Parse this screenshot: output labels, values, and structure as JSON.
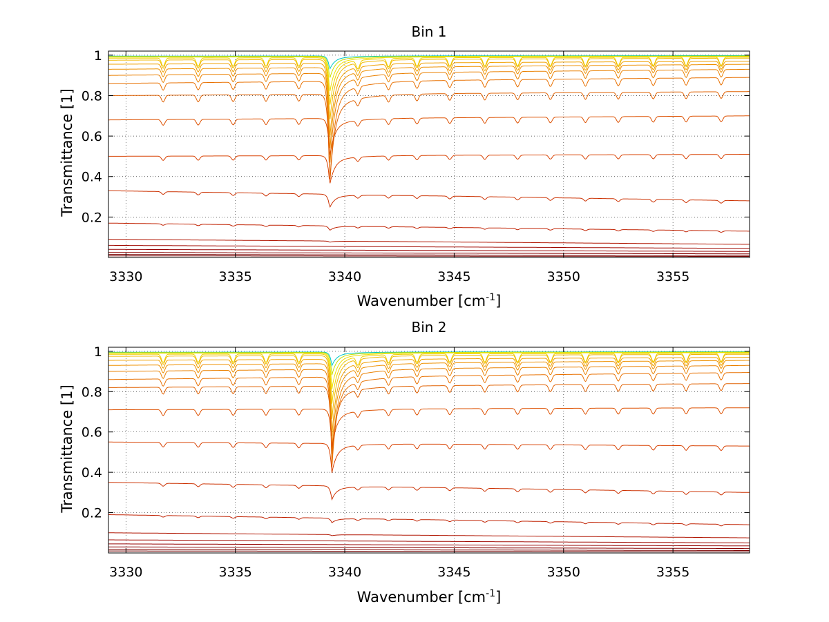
{
  "figure": {
    "background": "#ffffff"
  },
  "chart_data": [
    {
      "type": "line",
      "title": "Bin 1",
      "xlabel_main": "Wavenumber [cm",
      "xlabel_sup": "-1",
      "xlabel_end": "]",
      "ylabel": "Transmittance [1]",
      "xlim": [
        3329.2,
        3358.5
      ],
      "ylim": [
        0.0,
        1.02
      ],
      "xticks": [
        3330,
        3335,
        3340,
        3345,
        3350,
        3355
      ],
      "xtick_labels": [
        "3330",
        "3335",
        "3340",
        "3345",
        "3350",
        "3355"
      ],
      "yticks": [
        0.2,
        0.4,
        0.6,
        0.8,
        1.0
      ],
      "ytick_labels": [
        "0.2",
        "0.4",
        "0.6",
        "0.8",
        "1"
      ],
      "grid": true,
      "feature_center": 3339.3,
      "series": [
        {
          "baseline_start": 0.995,
          "baseline_end": 0.998,
          "dip_depth": 0.06,
          "color": "#00c8c8"
        },
        {
          "baseline_start": 0.993,
          "baseline_end": 0.996,
          "dip_depth": 0.1,
          "color": "#c8e000"
        },
        {
          "baseline_start": 0.99,
          "baseline_end": 0.993,
          "dip_depth": 0.16,
          "color": "#f0e000"
        },
        {
          "baseline_start": 0.985,
          "baseline_end": 0.99,
          "dip_depth": 0.22,
          "color": "#f0d000"
        },
        {
          "baseline_start": 0.975,
          "baseline_end": 0.985,
          "dip_depth": 0.28,
          "color": "#f0b800"
        },
        {
          "baseline_start": 0.955,
          "baseline_end": 0.97,
          "dip_depth": 0.34,
          "color": "#f0a000"
        },
        {
          "baseline_start": 0.93,
          "baseline_end": 0.955,
          "dip_depth": 0.38,
          "color": "#ee9000"
        },
        {
          "baseline_start": 0.9,
          "baseline_end": 0.93,
          "dip_depth": 0.42,
          "color": "#ea8000"
        },
        {
          "baseline_start": 0.86,
          "baseline_end": 0.89,
          "dip_depth": 0.46,
          "color": "#e87000"
        },
        {
          "baseline_start": 0.8,
          "baseline_end": 0.82,
          "dip_depth": 0.4,
          "color": "#e06000"
        },
        {
          "baseline_start": 0.68,
          "baseline_end": 0.7,
          "dip_depth": 0.17,
          "color": "#dd5000"
        },
        {
          "baseline_start": 0.5,
          "baseline_end": 0.51,
          "dip_depth": 0.13,
          "color": "#d84000"
        },
        {
          "baseline_start": 0.33,
          "baseline_end": 0.28,
          "dip_depth": 0.06,
          "color": "#cc3000"
        },
        {
          "baseline_start": 0.17,
          "baseline_end": 0.13,
          "dip_depth": 0.02,
          "color": "#c02000"
        },
        {
          "baseline_start": 0.09,
          "baseline_end": 0.065,
          "dip_depth": 0.005,
          "color": "#b01400"
        },
        {
          "baseline_start": 0.06,
          "baseline_end": 0.045,
          "dip_depth": 0.0,
          "color": "#a00800"
        },
        {
          "baseline_start": 0.04,
          "baseline_end": 0.03,
          "dip_depth": 0.0,
          "color": "#950000"
        },
        {
          "baseline_start": 0.025,
          "baseline_end": 0.018,
          "dip_depth": 0.0,
          "color": "#880000"
        },
        {
          "baseline_start": 0.015,
          "baseline_end": 0.01,
          "dip_depth": 0.0,
          "color": "#7c0000"
        },
        {
          "baseline_start": 0.008,
          "baseline_end": 0.005,
          "dip_depth": 0.0,
          "color": "#700000"
        }
      ]
    },
    {
      "type": "line",
      "title": "Bin 2",
      "xlabel_main": "Wavenumber [cm",
      "xlabel_sup": "-1",
      "xlabel_end": "]",
      "ylabel": "Transmittance [1]",
      "xlim": [
        3329.2,
        3358.5
      ],
      "ylim": [
        0.0,
        1.02
      ],
      "xticks": [
        3330,
        3335,
        3340,
        3345,
        3350,
        3355
      ],
      "xtick_labels": [
        "3330",
        "3335",
        "3340",
        "3345",
        "3350",
        "3355"
      ],
      "yticks": [
        0.2,
        0.4,
        0.6,
        0.8,
        1.0
      ],
      "ytick_labels": [
        "0.2",
        "0.4",
        "0.6",
        "0.8",
        "1"
      ],
      "grid": true,
      "feature_center": 3339.4,
      "series": [
        {
          "baseline_start": 0.995,
          "baseline_end": 0.998,
          "dip_depth": 0.06,
          "color": "#00c8c8"
        },
        {
          "baseline_start": 0.993,
          "baseline_end": 0.996,
          "dip_depth": 0.1,
          "color": "#c8e000"
        },
        {
          "baseline_start": 0.99,
          "baseline_end": 0.993,
          "dip_depth": 0.16,
          "color": "#f0e000"
        },
        {
          "baseline_start": 0.985,
          "baseline_end": 0.99,
          "dip_depth": 0.22,
          "color": "#f0d000"
        },
        {
          "baseline_start": 0.975,
          "baseline_end": 0.985,
          "dip_depth": 0.28,
          "color": "#f0b800"
        },
        {
          "baseline_start": 0.955,
          "baseline_end": 0.97,
          "dip_depth": 0.34,
          "color": "#f0a000"
        },
        {
          "baseline_start": 0.93,
          "baseline_end": 0.955,
          "dip_depth": 0.38,
          "color": "#ee9000"
        },
        {
          "baseline_start": 0.9,
          "baseline_end": 0.93,
          "dip_depth": 0.42,
          "color": "#ea8000"
        },
        {
          "baseline_start": 0.86,
          "baseline_end": 0.895,
          "dip_depth": 0.4,
          "color": "#e87000"
        },
        {
          "baseline_start": 0.82,
          "baseline_end": 0.84,
          "dip_depth": 0.3,
          "color": "#e06000"
        },
        {
          "baseline_start": 0.71,
          "baseline_end": 0.72,
          "dip_depth": 0.17,
          "color": "#dd5000"
        },
        {
          "baseline_start": 0.55,
          "baseline_end": 0.53,
          "dip_depth": 0.13,
          "color": "#d84000"
        },
        {
          "baseline_start": 0.35,
          "baseline_end": 0.3,
          "dip_depth": 0.06,
          "color": "#cc3000"
        },
        {
          "baseline_start": 0.19,
          "baseline_end": 0.14,
          "dip_depth": 0.02,
          "color": "#c02000"
        },
        {
          "baseline_start": 0.1,
          "baseline_end": 0.075,
          "dip_depth": 0.005,
          "color": "#b01400"
        },
        {
          "baseline_start": 0.065,
          "baseline_end": 0.05,
          "dip_depth": 0.0,
          "color": "#a00800"
        },
        {
          "baseline_start": 0.045,
          "baseline_end": 0.035,
          "dip_depth": 0.0,
          "color": "#950000"
        },
        {
          "baseline_start": 0.03,
          "baseline_end": 0.022,
          "dip_depth": 0.0,
          "color": "#880000"
        },
        {
          "baseline_start": 0.018,
          "baseline_end": 0.012,
          "dip_depth": 0.0,
          "color": "#7c0000"
        },
        {
          "baseline_start": 0.01,
          "baseline_end": 0.006,
          "dip_depth": 0.0,
          "color": "#700000"
        }
      ]
    }
  ]
}
